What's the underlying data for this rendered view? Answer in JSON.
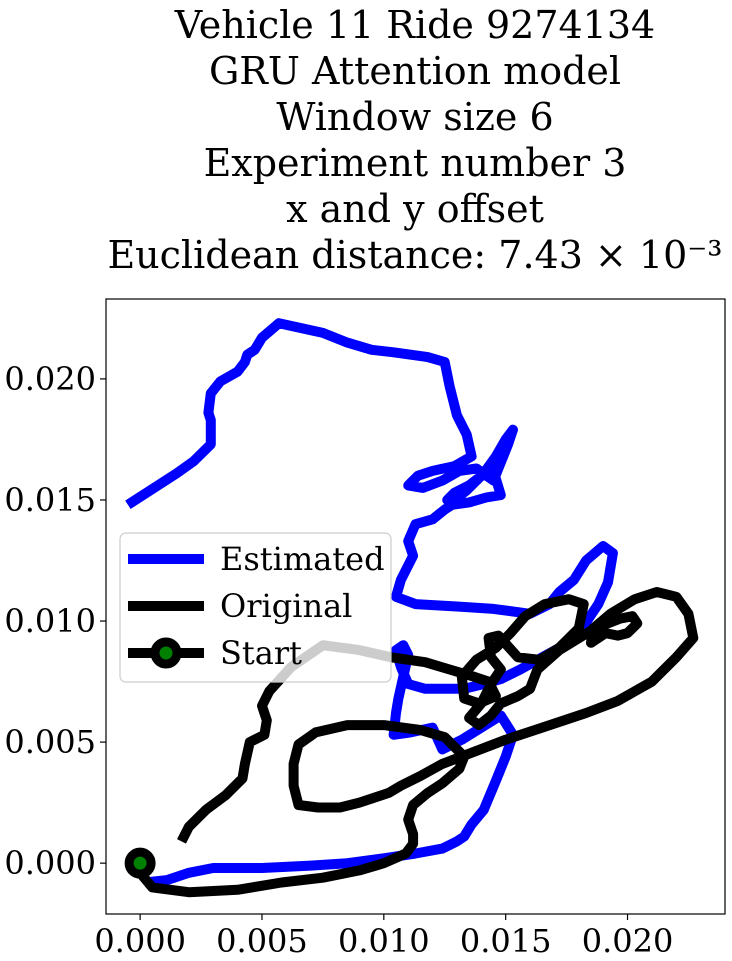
{
  "chart_data": {
    "type": "line",
    "title_lines": [
      "Vehicle 11 Ride 9274134",
      "GRU Attention model",
      "Window size 6",
      "Experiment number 3",
      "x and y offset",
      "Euclidean distance: 7.43 × 10⁻³"
    ],
    "xlabel": "",
    "ylabel": "",
    "xlim": [
      -0.0014,
      0.024
    ],
    "ylim": [
      -0.0021,
      0.0233
    ],
    "x_ticks": [
      "0.000",
      "0.005",
      "0.010",
      "0.015",
      "0.020"
    ],
    "y_ticks": [
      "0.000",
      "0.005",
      "0.010",
      "0.015",
      "0.020"
    ],
    "x_tick_values": [
      0,
      0.005,
      0.01,
      0.015,
      0.02
    ],
    "y_tick_values": [
      0,
      0.005,
      0.01,
      0.015,
      0.02
    ],
    "grid": false,
    "legend_position": "center-left",
    "series": [
      {
        "name": "Estimated",
        "color": "#0000ff",
        "points": [
          [
            -0.0005,
            0.0148
          ],
          [
            0.0015,
            0.0161
          ],
          [
            0.0022,
            0.0166
          ],
          [
            0.0029,
            0.0173
          ],
          [
            0.0029,
            0.0183
          ],
          [
            0.0028,
            0.0186
          ],
          [
            0.0029,
            0.0194
          ],
          [
            0.0033,
            0.0199
          ],
          [
            0.004,
            0.0203
          ],
          [
            0.0043,
            0.0207
          ],
          [
            0.0044,
            0.021
          ],
          [
            0.0047,
            0.0212
          ],
          [
            0.005,
            0.0217
          ],
          [
            0.0057,
            0.0223
          ],
          [
            0.0075,
            0.0219
          ],
          [
            0.0085,
            0.0215
          ],
          [
            0.0095,
            0.0212
          ],
          [
            0.0104,
            0.0211
          ],
          [
            0.0118,
            0.0209
          ],
          [
            0.0125,
            0.0207
          ],
          [
            0.0127,
            0.0197
          ],
          [
            0.013,
            0.0185
          ],
          [
            0.0134,
            0.0177
          ],
          [
            0.0136,
            0.0168
          ],
          [
            0.0129,
            0.0164
          ],
          [
            0.012,
            0.0162
          ],
          [
            0.0114,
            0.016
          ],
          [
            0.011,
            0.0156
          ],
          [
            0.0116,
            0.0155
          ],
          [
            0.0124,
            0.0158
          ],
          [
            0.0131,
            0.0162
          ],
          [
            0.0138,
            0.0163
          ],
          [
            0.0145,
            0.0158
          ],
          [
            0.0151,
            0.0173
          ],
          [
            0.0153,
            0.0179
          ],
          [
            0.015,
            0.0175
          ],
          [
            0.0146,
            0.0168
          ],
          [
            0.0141,
            0.0161
          ],
          [
            0.0134,
            0.0154
          ],
          [
            0.0129,
            0.015
          ],
          [
            0.0126,
            0.015
          ],
          [
            0.0129,
            0.0153
          ],
          [
            0.0135,
            0.0156
          ],
          [
            0.014,
            0.016
          ],
          [
            0.0145,
            0.0162
          ],
          [
            0.0148,
            0.0152
          ],
          [
            0.0142,
            0.0151
          ],
          [
            0.0135,
            0.0149
          ],
          [
            0.0128,
            0.0148
          ],
          [
            0.0125,
            0.0146
          ],
          [
            0.012,
            0.0142
          ],
          [
            0.0113,
            0.014
          ],
          [
            0.011,
            0.0133
          ],
          [
            0.0112,
            0.0127
          ],
          [
            0.0107,
            0.0117
          ],
          [
            0.0105,
            0.011
          ],
          [
            0.0113,
            0.0107
          ],
          [
            0.013,
            0.0106
          ],
          [
            0.0145,
            0.0105
          ],
          [
            0.016,
            0.0103
          ],
          [
            0.0168,
            0.0107
          ],
          [
            0.0172,
            0.0112
          ],
          [
            0.0178,
            0.0117
          ],
          [
            0.0183,
            0.0125
          ],
          [
            0.019,
            0.0131
          ],
          [
            0.0194,
            0.0128
          ],
          [
            0.0192,
            0.0116
          ],
          [
            0.0188,
            0.0107
          ],
          [
            0.0182,
            0.0098
          ],
          [
            0.0174,
            0.009
          ],
          [
            0.0165,
            0.0085
          ],
          [
            0.0156,
            0.008
          ],
          [
            0.0148,
            0.0076
          ],
          [
            0.0141,
            0.0074
          ],
          [
            0.0133,
            0.0072
          ],
          [
            0.0126,
            0.0072
          ],
          [
            0.0117,
            0.0072
          ],
          [
            0.011,
            0.0074
          ],
          [
            0.0107,
            0.0081
          ],
          [
            0.0105,
            0.0088
          ],
          [
            0.0108,
            0.009
          ],
          [
            0.011,
            0.0086
          ],
          [
            0.0108,
            0.0077
          ],
          [
            0.0106,
            0.0068
          ],
          [
            0.0105,
            0.0062
          ],
          [
            0.0104,
            0.0053
          ],
          [
            0.0111,
            0.0054
          ],
          [
            0.012,
            0.0056
          ],
          [
            0.0124,
            0.0047
          ],
          [
            0.0132,
            0.0051
          ],
          [
            0.014,
            0.0056
          ],
          [
            0.0148,
            0.0061
          ],
          [
            0.0153,
            0.0053
          ],
          [
            0.015,
            0.0044
          ],
          [
            0.0146,
            0.0034
          ],
          [
            0.0141,
            0.0022
          ],
          [
            0.0136,
            0.0016
          ],
          [
            0.0133,
            0.0011
          ],
          [
            0.013,
            0.0009
          ],
          [
            0.0124,
            0.0006
          ],
          [
            0.0113,
            0.0004
          ],
          [
            0.01,
            0.0002
          ],
          [
            0.0085,
            0.0
          ],
          [
            0.007,
            -0.0001
          ],
          [
            0.005,
            -0.0002
          ],
          [
            0.003,
            -0.0002
          ],
          [
            0.002,
            -0.0004
          ],
          [
            0.0011,
            -0.0007
          ],
          [
            0.0002,
            -0.0008
          ]
        ]
      },
      {
        "name": "Original",
        "color": "#000000",
        "points": [
          [
            0.0017,
            0.0009
          ],
          [
            0.002,
            0.0015
          ],
          [
            0.0027,
            0.0022
          ],
          [
            0.0035,
            0.0028
          ],
          [
            0.0042,
            0.0035
          ],
          [
            0.0043,
            0.0041
          ],
          [
            0.0045,
            0.005
          ],
          [
            0.0051,
            0.0053
          ],
          [
            0.0052,
            0.0059
          ],
          [
            0.005,
            0.0065
          ],
          [
            0.0053,
            0.0071
          ],
          [
            0.0062,
            0.0081
          ],
          [
            0.0075,
            0.009
          ],
          [
            0.009,
            0.0088
          ],
          [
            0.0103,
            0.0085
          ],
          [
            0.0117,
            0.0083
          ],
          [
            0.0127,
            0.008
          ],
          [
            0.0137,
            0.0077
          ],
          [
            0.0143,
            0.0075
          ],
          [
            0.0146,
            0.0069
          ],
          [
            0.0139,
            0.0066
          ],
          [
            0.0133,
            0.0068
          ],
          [
            0.0132,
            0.0077
          ],
          [
            0.0138,
            0.0084
          ],
          [
            0.0146,
            0.0089
          ],
          [
            0.0152,
            0.0095
          ],
          [
            0.0158,
            0.0102
          ],
          [
            0.0166,
            0.0107
          ],
          [
            0.0176,
            0.0109
          ],
          [
            0.0182,
            0.0107
          ],
          [
            0.018,
            0.0097
          ],
          [
            0.0172,
            0.0089
          ],
          [
            0.0164,
            0.0084
          ],
          [
            0.0155,
            0.0085
          ],
          [
            0.0147,
            0.0094
          ],
          [
            0.0143,
            0.0093
          ],
          [
            0.0144,
            0.0085
          ],
          [
            0.0148,
            0.008
          ],
          [
            0.0144,
            0.0074
          ],
          [
            0.014,
            0.0066
          ],
          [
            0.0135,
            0.006
          ],
          [
            0.0139,
            0.0057
          ],
          [
            0.0144,
            0.0061
          ],
          [
            0.0148,
            0.0066
          ],
          [
            0.0155,
            0.0069
          ],
          [
            0.016,
            0.0072
          ],
          [
            0.0163,
            0.008
          ],
          [
            0.0172,
            0.0088
          ],
          [
            0.0185,
            0.0096
          ],
          [
            0.0192,
            0.0099
          ],
          [
            0.0197,
            0.0101
          ],
          [
            0.0202,
            0.0102
          ],
          [
            0.0204,
            0.0099
          ],
          [
            0.02,
            0.0095
          ],
          [
            0.0196,
            0.0094
          ],
          [
            0.0191,
            0.0095
          ],
          [
            0.0185,
            0.0091
          ],
          [
            0.0186,
            0.0097
          ],
          [
            0.0193,
            0.0103
          ],
          [
            0.0203,
            0.0109
          ],
          [
            0.0212,
            0.0112
          ],
          [
            0.022,
            0.011
          ],
          [
            0.0225,
            0.0103
          ],
          [
            0.0227,
            0.0093
          ],
          [
            0.022,
            0.0085
          ],
          [
            0.021,
            0.0075
          ],
          [
            0.0196,
            0.0067
          ],
          [
            0.0183,
            0.0062
          ],
          [
            0.0165,
            0.0056
          ],
          [
            0.015,
            0.0051
          ],
          [
            0.0137,
            0.0046
          ],
          [
            0.0124,
            0.0041
          ],
          [
            0.0115,
            0.0036
          ],
          [
            0.0107,
            0.0032
          ],
          [
            0.0102,
            0.0029
          ],
          [
            0.0096,
            0.0027
          ],
          [
            0.009,
            0.0025
          ],
          [
            0.0082,
            0.0023
          ],
          [
            0.0073,
            0.0023
          ],
          [
            0.0065,
            0.0024
          ],
          [
            0.0063,
            0.0032
          ],
          [
            0.0063,
            0.0041
          ],
          [
            0.0065,
            0.0049
          ],
          [
            0.0072,
            0.0054
          ],
          [
            0.0085,
            0.0057
          ],
          [
            0.01,
            0.0057
          ],
          [
            0.0115,
            0.0055
          ],
          [
            0.0125,
            0.0052
          ],
          [
            0.0133,
            0.0044
          ],
          [
            0.0131,
            0.0039
          ],
          [
            0.0124,
            0.0033
          ],
          [
            0.0118,
            0.0029
          ],
          [
            0.0112,
            0.0024
          ],
          [
            0.011,
            0.0018
          ],
          [
            0.0112,
            0.0012
          ],
          [
            0.0112,
            0.0008
          ],
          [
            0.0109,
            0.0004
          ],
          [
            0.01,
            0.0
          ],
          [
            0.009,
            -0.0003
          ],
          [
            0.0075,
            -0.0006
          ],
          [
            0.0058,
            -0.0008
          ],
          [
            0.004,
            -0.0011
          ],
          [
            0.002,
            -0.0012
          ],
          [
            0.0005,
            -0.001
          ],
          [
            0.0,
            -0.0004
          ],
          [
            0.0,
            0.0
          ]
        ]
      },
      {
        "name": "Start",
        "marker_face": "#008000",
        "marker_edge": "#000000",
        "points": [
          [
            0.0,
            0.0
          ]
        ]
      }
    ]
  }
}
